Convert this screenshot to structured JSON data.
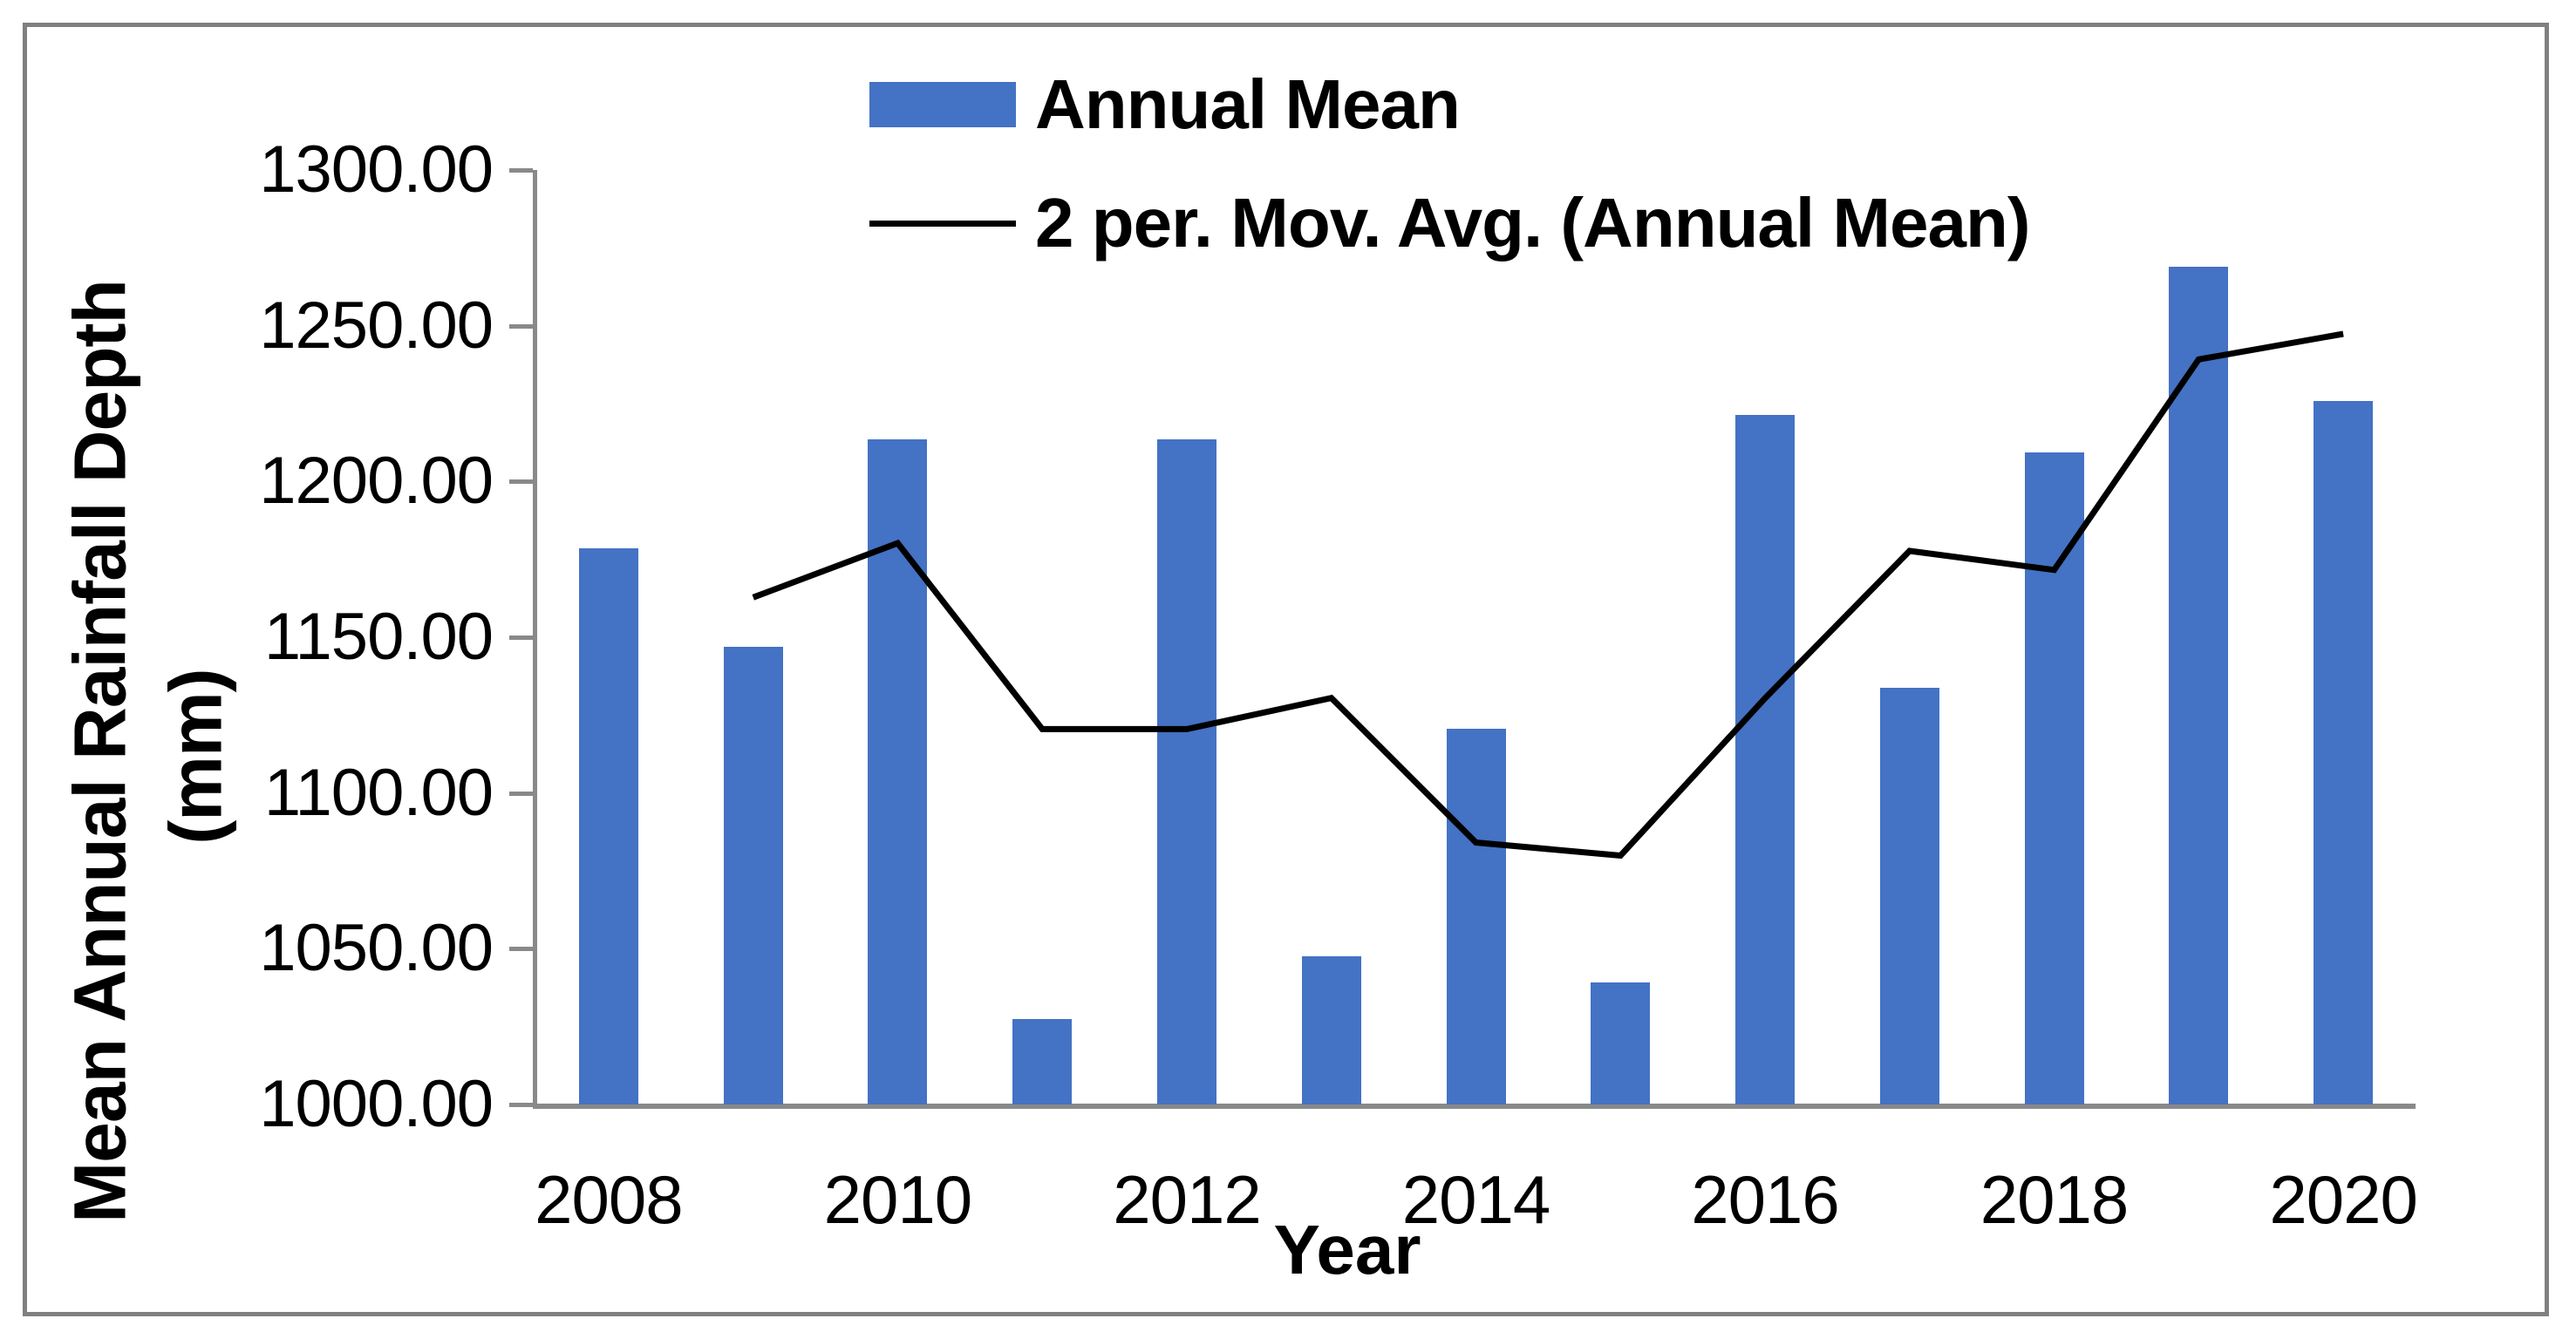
{
  "chart_data": {
    "type": "bar",
    "title": "",
    "xlabel": "Year",
    "ylabel": "Mean Annual Rainfall Depth (mm)",
    "ylabel_lines": [
      "Mean Annual Rainfall Depth",
      "(mm)"
    ],
    "ylim": [
      1000,
      1300
    ],
    "yticks": [
      1300,
      1250,
      1200,
      1150,
      1100,
      1050,
      1000
    ],
    "ytick_labels": [
      "1300.00",
      "1250.00",
      "1200.00",
      "1150.00",
      "1100.00",
      "1050.00",
      "1000.00"
    ],
    "xtick_labels": [
      "2008",
      "2010",
      "2012",
      "2014",
      "2016",
      "2018",
      "2020"
    ],
    "categories": [
      "2008",
      "2009",
      "2010",
      "2011",
      "2012",
      "2013",
      "2014",
      "2015",
      "2016",
      "2017",
      "2018",
      "2019",
      "2020"
    ],
    "series": [
      {
        "name": "Annual Mean",
        "type": "bar",
        "color": "#4472C4",
        "values": [
          1178.6,
          1146.9,
          1213.5,
          1027.4,
          1213.5,
          1047.5,
          1120.6,
          1039.2,
          1221.5,
          1133.8,
          1209.3,
          1269.0,
          1225.7
        ]
      },
      {
        "name": "2 per. Mov. Avg. (Annual Mean)",
        "type": "line",
        "color": "#000000",
        "values": [
          null,
          1162.8,
          1180.2,
          1120.5,
          1120.5,
          1130.5,
          1084.1,
          1079.9,
          1130.4,
          1177.7,
          1171.6,
          1239.2,
          1247.4
        ]
      }
    ],
    "grid": false,
    "legend_position": "top-center"
  },
  "colors": {
    "bar_fill": "#4472C4",
    "moving_avg_line": "#000000",
    "axis_line": "#898989",
    "outer_border": "#808080",
    "background": "#FFFFFF",
    "text": "#000000"
  }
}
